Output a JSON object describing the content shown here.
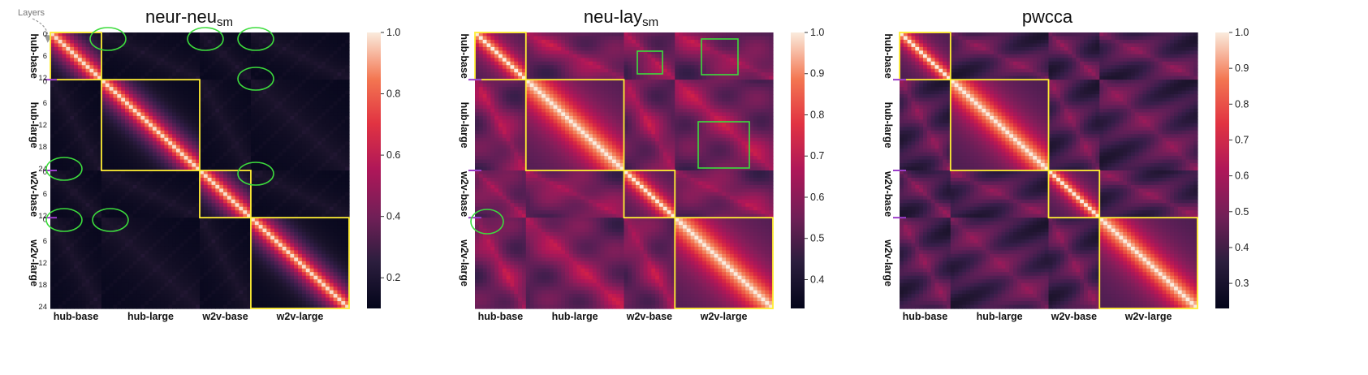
{
  "layers_annotation": "Layers",
  "chart_data": [
    {
      "type": "heatmap",
      "title_main": "neur-neu",
      "title_sub": "sm",
      "row_tick_labels": [
        "0",
        "6",
        "12",
        "0",
        "6",
        "12",
        "18",
        "24",
        "0",
        "6",
        "12",
        "0",
        "6",
        "12",
        "18",
        "24"
      ],
      "categories": [
        "hub-base",
        "hub-large",
        "w2v-base",
        "w2v-large"
      ],
      "block_sizes": [
        13,
        25,
        13,
        25
      ],
      "colorbar": {
        "ticks": [
          "0.2",
          "0.4",
          "0.6",
          "0.8",
          "1.0"
        ],
        "values": [
          0.2,
          0.4,
          0.6,
          0.8,
          1.0
        ],
        "range": [
          0.1,
          1.0
        ]
      },
      "annotations": [
        "ellipse",
        "ellipse",
        "ellipse",
        "ellipse",
        "ellipse",
        "ellipse",
        "ellipse",
        "ellipse",
        "ellipse"
      ]
    },
    {
      "type": "heatmap",
      "title_main": "neu-lay",
      "title_sub": "sm",
      "row_tick_labels": [],
      "categories": [
        "hub-base",
        "hub-large",
        "w2v-base",
        "w2v-large"
      ],
      "block_sizes": [
        13,
        25,
        13,
        25
      ],
      "colorbar": {
        "ticks": [
          "0.4",
          "0.5",
          "0.6",
          "0.7",
          "0.8",
          "0.9",
          "1.0"
        ],
        "values": [
          0.4,
          0.5,
          0.6,
          0.7,
          0.8,
          0.9,
          1.0
        ],
        "range": [
          0.33,
          1.0
        ]
      },
      "annotations": [
        "box",
        "box",
        "box",
        "ellipse"
      ]
    },
    {
      "type": "heatmap",
      "title_main": "pwcca",
      "title_sub": "",
      "row_tick_labels": [],
      "categories": [
        "hub-base",
        "hub-large",
        "w2v-base",
        "w2v-large"
      ],
      "block_sizes": [
        13,
        25,
        13,
        25
      ],
      "colorbar": {
        "ticks": [
          "0.3",
          "0.4",
          "0.5",
          "0.6",
          "0.7",
          "0.8",
          "0.9",
          "1.0"
        ],
        "values": [
          0.3,
          0.4,
          0.5,
          0.6,
          0.7,
          0.8,
          0.9,
          1.0
        ],
        "range": [
          0.23,
          1.0
        ]
      },
      "annotations": []
    }
  ]
}
